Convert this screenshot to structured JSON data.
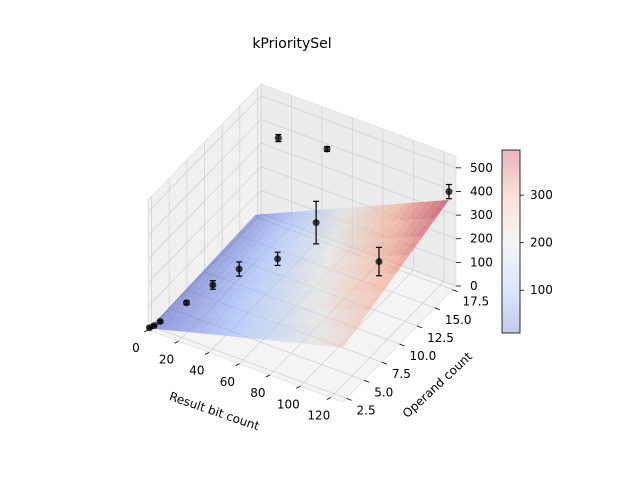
{
  "chart_data": {
    "type": "surface3d",
    "title": "kPrioritySel",
    "xlabel": "Result bit count",
    "ylabel": "Operand count",
    "zlabel": "",
    "x_ticks": [
      "0",
      "20",
      "40",
      "60",
      "80",
      "100",
      "120"
    ],
    "y_ticks": [
      "2.5",
      "5.0",
      "7.5",
      "10.0",
      "12.5",
      "15.0",
      "17.5"
    ],
    "z_ticks": [
      "0",
      "100",
      "200",
      "300",
      "400",
      "500"
    ],
    "xlim": [
      0,
      128
    ],
    "ylim": [
      2,
      18
    ],
    "zlim": [
      0,
      550
    ],
    "grid": true,
    "colormap": "coolwarm",
    "colorbar": {
      "ticks": [
        "100",
        "200",
        "300"
      ],
      "range": [
        10,
        395
      ]
    },
    "surface_fit": {
      "description_free": true,
      "corners": [
        {
          "x": 1,
          "y": 2,
          "z": 10
        },
        {
          "x": 128,
          "y": 2,
          "z": 230
        },
        {
          "x": 1,
          "y": 17,
          "z": 30
        },
        {
          "x": 128,
          "y": 17,
          "z": 395
        }
      ]
    },
    "points": [
      {
        "x": 1,
        "y": 2,
        "z": 12,
        "err": 4
      },
      {
        "x": 4,
        "y": 2,
        "z": 28,
        "err": 4
      },
      {
        "x": 8,
        "y": 2,
        "z": 55,
        "err": 5
      },
      {
        "x": 16,
        "y": 4,
        "z": 92,
        "err": 8
      },
      {
        "x": 24,
        "y": 6,
        "z": 125,
        "err": 18
      },
      {
        "x": 32,
        "y": 8,
        "z": 150,
        "err": 30
      },
      {
        "x": 48,
        "y": 10,
        "z": 170,
        "err": 28
      },
      {
        "x": 64,
        "y": 12,
        "z": 300,
        "err": 90
      },
      {
        "x": 96,
        "y": 14,
        "z": 150,
        "err": 60
      },
      {
        "x": 16,
        "y": 17,
        "z": 390,
        "err": 15
      },
      {
        "x": 48,
        "y": 17,
        "z": 420,
        "err": 10
      },
      {
        "x": 128,
        "y": 17,
        "z": 430,
        "err": 30
      }
    ]
  }
}
